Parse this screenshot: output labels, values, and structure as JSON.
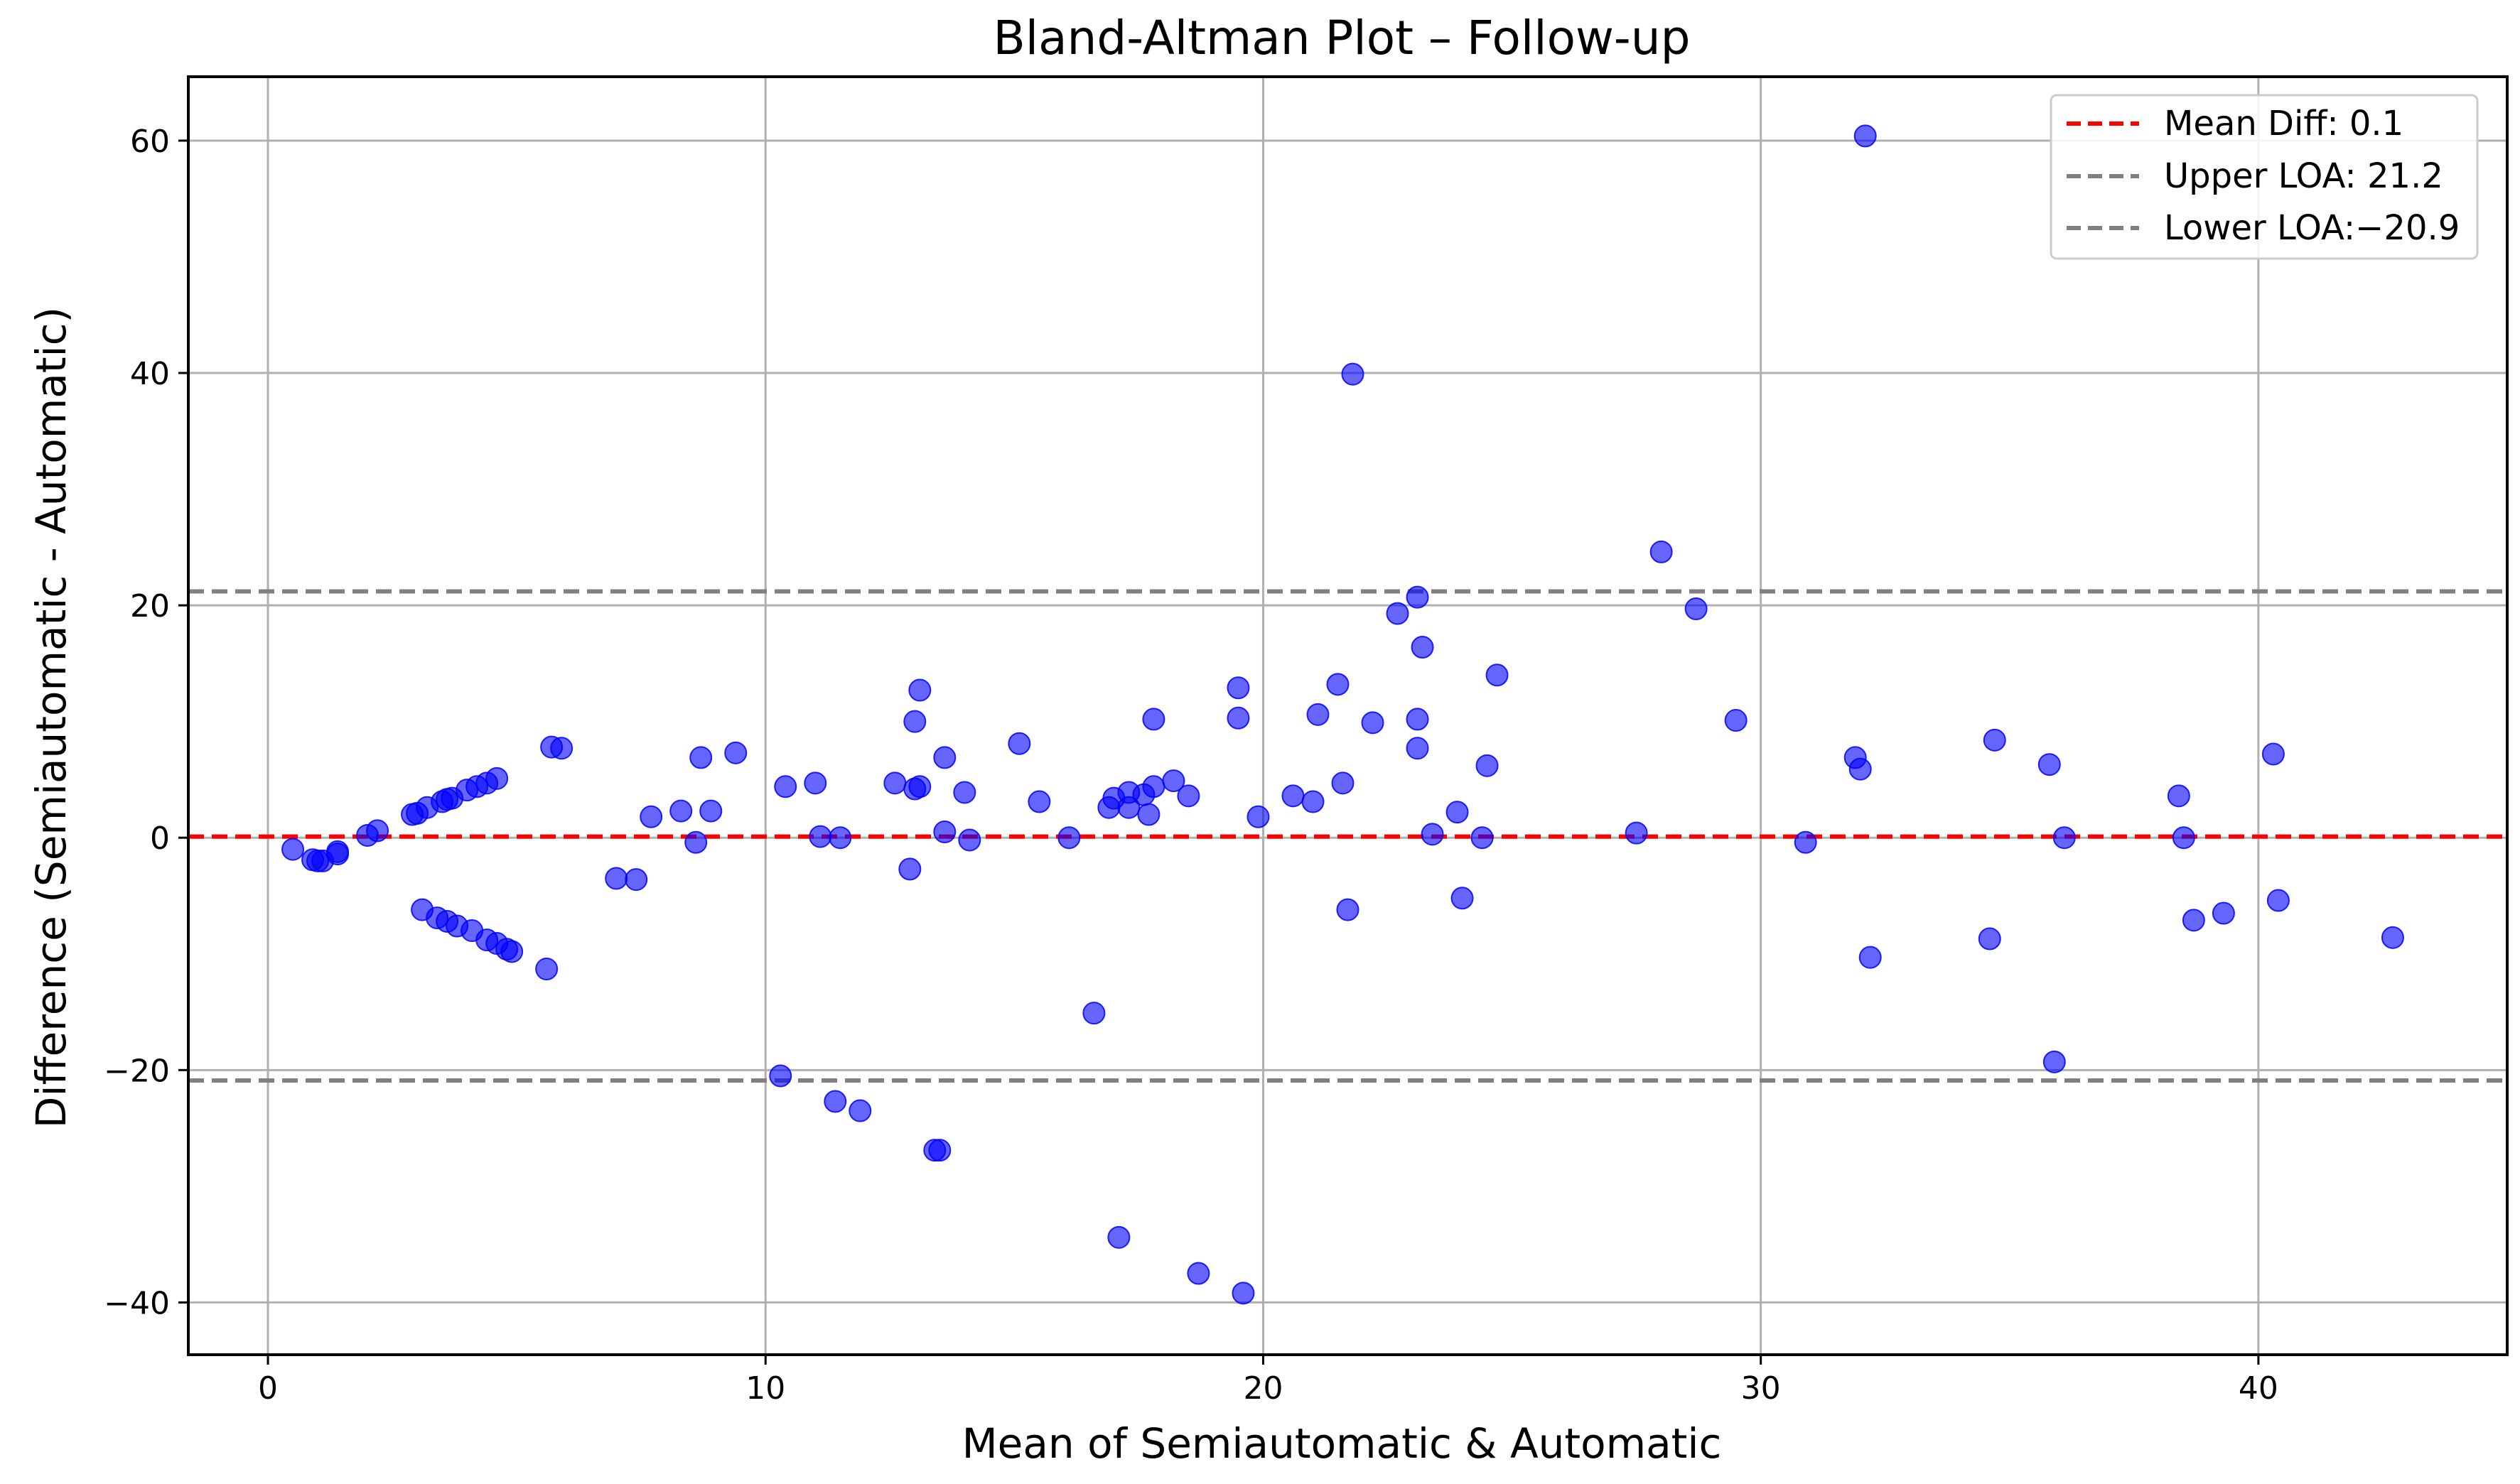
{
  "chart_data": {
    "type": "scatter",
    "title": "Bland-Altman Plot – Follow-up",
    "xlabel": "Mean of Semiautomatic & Automatic",
    "ylabel": "Difference (Semiautomatic - Automatic)",
    "xlim": [
      -1.6,
      45
    ],
    "ylim": [
      -44.5,
      65.5
    ],
    "xticks": [
      0,
      10,
      20,
      30,
      40
    ],
    "yticks": [
      -40,
      -20,
      0,
      20,
      40,
      60
    ],
    "xtick_labels": [
      "0",
      "10",
      "20",
      "30",
      "40"
    ],
    "ytick_labels": [
      "−40",
      "−20",
      "0",
      "20",
      "40",
      "60"
    ],
    "grid": true,
    "legend_position": "top-right",
    "point_color": "#0000ff",
    "reference_lines": [
      {
        "label": "Mean Diff: 0.1",
        "value": 0.1,
        "color": "#ff0000",
        "style": "dashed"
      },
      {
        "label": "Upper LOA: 21.2",
        "value": 21.2,
        "color": "#808080",
        "style": "dashed"
      },
      {
        "label": "Lower LOA:−20.9",
        "value": -20.9,
        "color": "#808080",
        "style": "dashed"
      }
    ],
    "points": [
      {
        "x": 0.5,
        "y": -1.0
      },
      {
        "x": 0.9,
        "y": -1.9
      },
      {
        "x": 1.0,
        "y": -2.0
      },
      {
        "x": 1.1,
        "y": -2.0
      },
      {
        "x": 1.4,
        "y": -1.2
      },
      {
        "x": 1.4,
        "y": -1.4
      },
      {
        "x": 2.0,
        "y": 0.2
      },
      {
        "x": 2.2,
        "y": 0.6
      },
      {
        "x": 2.9,
        "y": 2.0
      },
      {
        "x": 3.0,
        "y": 2.1
      },
      {
        "x": 3.2,
        "y": 2.6
      },
      {
        "x": 3.5,
        "y": 3.1
      },
      {
        "x": 3.6,
        "y": 3.3
      },
      {
        "x": 3.7,
        "y": 3.4
      },
      {
        "x": 4.0,
        "y": 4.1
      },
      {
        "x": 4.2,
        "y": 4.4
      },
      {
        "x": 4.4,
        "y": 4.7
      },
      {
        "x": 4.6,
        "y": 5.1
      },
      {
        "x": 3.1,
        "y": -6.2
      },
      {
        "x": 3.4,
        "y": -6.9
      },
      {
        "x": 3.6,
        "y": -7.2
      },
      {
        "x": 3.8,
        "y": -7.6
      },
      {
        "x": 4.1,
        "y": -8.0
      },
      {
        "x": 4.4,
        "y": -8.8
      },
      {
        "x": 4.6,
        "y": -9.1
      },
      {
        "x": 4.8,
        "y": -9.6
      },
      {
        "x": 4.9,
        "y": -9.8
      },
      {
        "x": 5.6,
        "y": -11.3
      },
      {
        "x": 5.7,
        "y": 7.8
      },
      {
        "x": 5.9,
        "y": 7.7
      },
      {
        "x": 7.0,
        "y": -3.5
      },
      {
        "x": 7.4,
        "y": -3.6
      },
      {
        "x": 7.7,
        "y": 1.8
      },
      {
        "x": 8.3,
        "y": 2.3
      },
      {
        "x": 8.6,
        "y": -0.4
      },
      {
        "x": 8.7,
        "y": 6.9
      },
      {
        "x": 8.9,
        "y": 2.3
      },
      {
        "x": 9.4,
        "y": 7.3
      },
      {
        "x": 10.3,
        "y": -20.5
      },
      {
        "x": 10.4,
        "y": 4.4
      },
      {
        "x": 11.0,
        "y": 4.7
      },
      {
        "x": 11.1,
        "y": 0.1
      },
      {
        "x": 11.4,
        "y": -22.7
      },
      {
        "x": 11.5,
        "y": 0.0
      },
      {
        "x": 11.9,
        "y": -23.5
      },
      {
        "x": 12.6,
        "y": 4.7
      },
      {
        "x": 12.9,
        "y": -2.7
      },
      {
        "x": 13.0,
        "y": 10.0
      },
      {
        "x": 13.0,
        "y": 4.2
      },
      {
        "x": 13.1,
        "y": 4.4
      },
      {
        "x": 13.1,
        "y": 12.7
      },
      {
        "x": 13.4,
        "y": -26.9
      },
      {
        "x": 13.5,
        "y": -26.9
      },
      {
        "x": 13.6,
        "y": 0.5
      },
      {
        "x": 13.6,
        "y": 6.9
      },
      {
        "x": 14.0,
        "y": 3.9
      },
      {
        "x": 14.1,
        "y": -0.2
      },
      {
        "x": 15.1,
        "y": 8.1
      },
      {
        "x": 15.5,
        "y": 3.1
      },
      {
        "x": 16.1,
        "y": 0.0
      },
      {
        "x": 16.6,
        "y": -15.1
      },
      {
        "x": 16.9,
        "y": 2.6
      },
      {
        "x": 17.0,
        "y": 3.4
      },
      {
        "x": 17.1,
        "y": -34.4
      },
      {
        "x": 17.3,
        "y": 2.6
      },
      {
        "x": 17.3,
        "y": 3.9
      },
      {
        "x": 17.6,
        "y": 3.7
      },
      {
        "x": 17.7,
        "y": 2.0
      },
      {
        "x": 17.8,
        "y": 10.2
      },
      {
        "x": 17.8,
        "y": 4.4
      },
      {
        "x": 18.2,
        "y": 4.9
      },
      {
        "x": 18.5,
        "y": 3.6
      },
      {
        "x": 18.7,
        "y": -37.5
      },
      {
        "x": 19.5,
        "y": 12.9
      },
      {
        "x": 19.5,
        "y": 10.3
      },
      {
        "x": 19.6,
        "y": -39.2
      },
      {
        "x": 19.9,
        "y": 1.8
      },
      {
        "x": 20.6,
        "y": 3.6
      },
      {
        "x": 21.0,
        "y": 3.1
      },
      {
        "x": 21.1,
        "y": 10.6
      },
      {
        "x": 21.5,
        "y": 13.2
      },
      {
        "x": 21.6,
        "y": 4.7
      },
      {
        "x": 21.7,
        "y": -6.2
      },
      {
        "x": 21.8,
        "y": 39.9
      },
      {
        "x": 22.2,
        "y": 9.9
      },
      {
        "x": 22.7,
        "y": 19.3
      },
      {
        "x": 23.1,
        "y": 20.7
      },
      {
        "x": 23.1,
        "y": 7.7
      },
      {
        "x": 23.1,
        "y": 10.2
      },
      {
        "x": 23.2,
        "y": 16.4
      },
      {
        "x": 23.4,
        "y": 0.3
      },
      {
        "x": 23.9,
        "y": 2.2
      },
      {
        "x": 24.0,
        "y": -5.2
      },
      {
        "x": 24.4,
        "y": 0.0
      },
      {
        "x": 24.5,
        "y": 6.2
      },
      {
        "x": 24.7,
        "y": 14.0
      },
      {
        "x": 27.5,
        "y": 0.4
      },
      {
        "x": 28.0,
        "y": 24.6
      },
      {
        "x": 28.7,
        "y": 19.7
      },
      {
        "x": 29.5,
        "y": 10.1
      },
      {
        "x": 30.9,
        "y": -0.4
      },
      {
        "x": 31.9,
        "y": 6.9
      },
      {
        "x": 32.0,
        "y": 5.9
      },
      {
        "x": 32.1,
        "y": 60.4
      },
      {
        "x": 32.2,
        "y": -10.3
      },
      {
        "x": 34.6,
        "y": -8.7
      },
      {
        "x": 34.7,
        "y": 8.4
      },
      {
        "x": 35.8,
        "y": 6.3
      },
      {
        "x": 35.9,
        "y": -19.3
      },
      {
        "x": 36.1,
        "y": 0.0
      },
      {
        "x": 38.4,
        "y": 3.6
      },
      {
        "x": 38.5,
        "y": 0.0
      },
      {
        "x": 38.7,
        "y": -7.1
      },
      {
        "x": 39.3,
        "y": -6.5
      },
      {
        "x": 40.3,
        "y": 7.2
      },
      {
        "x": 40.4,
        "y": -5.4
      },
      {
        "x": 42.7,
        "y": -8.6
      }
    ]
  }
}
